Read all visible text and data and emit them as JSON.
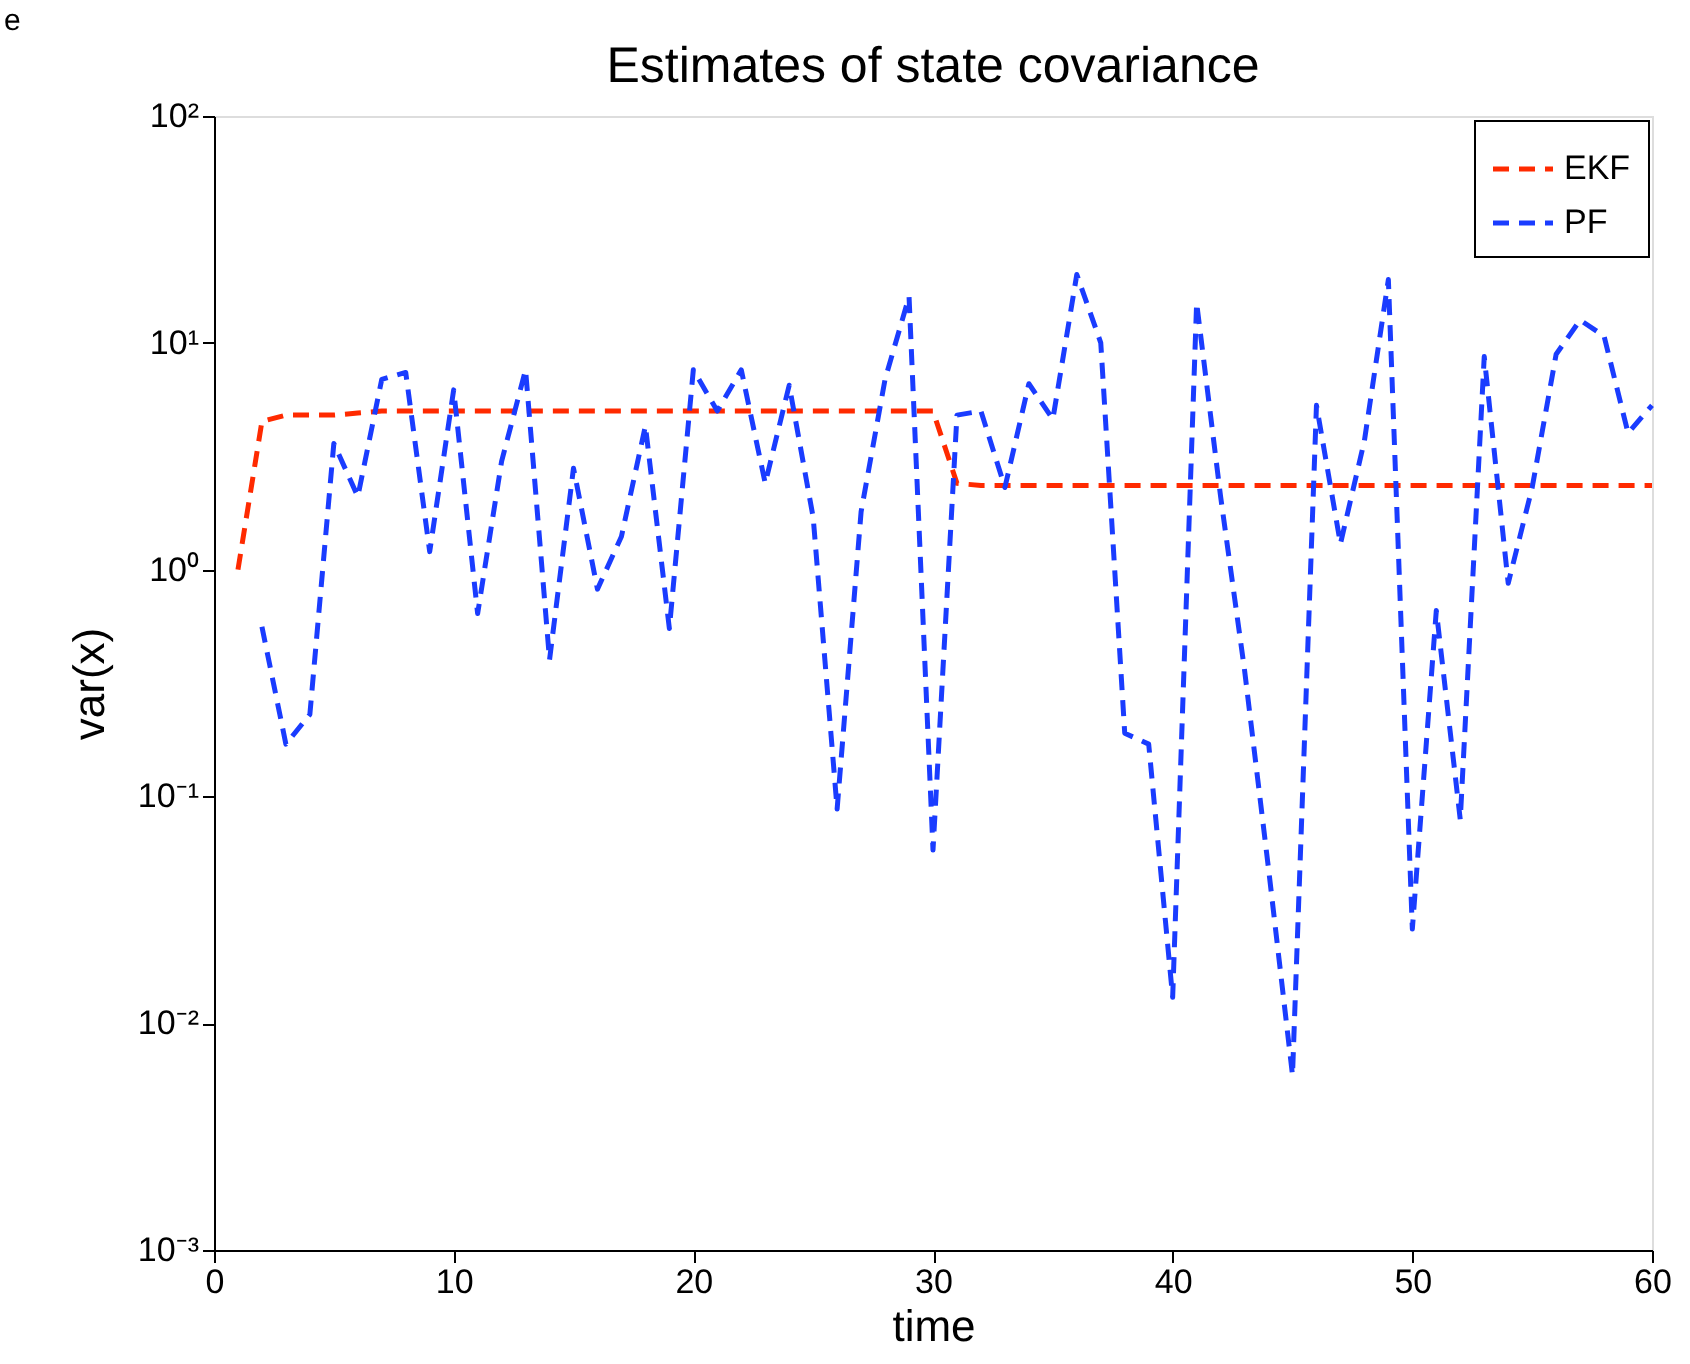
{
  "chart_data": {
    "type": "line",
    "title": "Estimates of state covariance",
    "xlabel": "time",
    "ylabel": "var(x)",
    "annotations": [
      "e"
    ],
    "x": [
      1,
      2,
      3,
      4,
      5,
      6,
      7,
      8,
      9,
      10,
      11,
      12,
      13,
      14,
      15,
      16,
      17,
      18,
      19,
      20,
      21,
      22,
      23,
      24,
      25,
      26,
      27,
      28,
      29,
      30,
      31,
      32,
      33,
      34,
      35,
      36,
      37,
      38,
      39,
      40,
      41,
      42,
      43,
      44,
      45,
      46,
      47,
      48,
      49,
      50,
      51,
      52,
      53,
      54,
      55,
      56,
      57,
      58,
      59,
      60
    ],
    "series": [
      {
        "name": "EKF",
        "color": "#ff2a00",
        "values": [
          1.0,
          4.5,
          4.8,
          4.8,
          4.8,
          4.9,
          5.0,
          5.0,
          5.0,
          5.0,
          5.0,
          5.0,
          5.0,
          5.0,
          5.0,
          5.0,
          5.0,
          5.0,
          5.0,
          5.0,
          5.0,
          5.0,
          5.0,
          5.0,
          5.0,
          5.0,
          5.0,
          5.0,
          5.0,
          5.0,
          2.4,
          2.35,
          2.35,
          2.35,
          2.35,
          2.35,
          2.35,
          2.35,
          2.35,
          2.35,
          2.35,
          2.35,
          2.35,
          2.35,
          2.35,
          2.35,
          2.35,
          2.35,
          2.35,
          2.35,
          2.35,
          2.35,
          2.35,
          2.35,
          2.35,
          2.35,
          2.35,
          2.35,
          2.35,
          2.35
        ]
      },
      {
        "name": "PF",
        "color": "#1a3cff",
        "values": [
          null,
          0.56,
          0.17,
          0.23,
          3.6,
          2.1,
          6.9,
          7.4,
          1.2,
          6.2,
          0.64,
          3.0,
          7.6,
          0.4,
          2.8,
          0.82,
          1.4,
          4.3,
          0.55,
          7.6,
          5.0,
          7.6,
          2.4,
          6.5,
          1.7,
          0.088,
          1.8,
          6.9,
          16,
          0.058,
          4.8,
          5.0,
          2.3,
          6.6,
          4.6,
          20,
          10,
          0.19,
          0.17,
          0.013,
          15,
          2.1,
          0.36,
          0.048,
          0.0059,
          5.3,
          1.3,
          3.7,
          19,
          0.026,
          0.66,
          0.079,
          8.7,
          0.87,
          2.3,
          8.9,
          12.6,
          10.7,
          4.0,
          5.3
        ]
      }
    ],
    "xlim": [
      0,
      60
    ],
    "xticks": [
      0,
      10,
      20,
      30,
      40,
      50,
      60
    ],
    "log": "y",
    "ylim": [
      0.001,
      100
    ],
    "yticks": [
      {
        "value": 0.001,
        "label": "10⁻³"
      },
      {
        "value": 0.01,
        "label": "10⁻²"
      },
      {
        "value": 0.1,
        "label": "10⁻¹"
      },
      {
        "value": 1,
        "label": "10⁰"
      },
      {
        "value": 10,
        "label": "10¹"
      },
      {
        "value": 100,
        "label": "10²"
      }
    ],
    "legend": "top right",
    "line_style": "dashed",
    "marker": "none",
    "grid": false
  }
}
